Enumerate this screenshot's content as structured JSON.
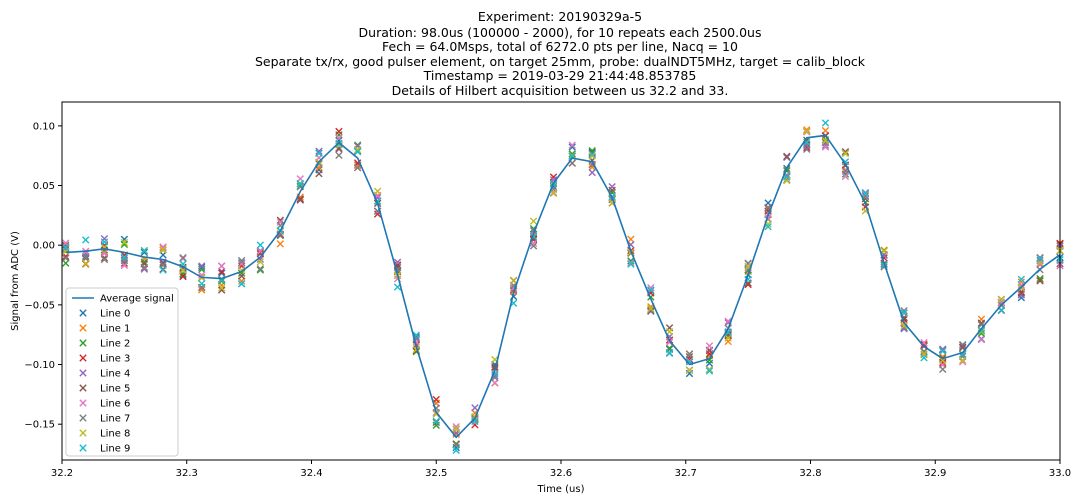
{
  "chart_data": {
    "type": "scatter",
    "title_lines": [
      "Experiment: 20190329a-5",
      "Duration: 98.0us (100000 - 2000), for 10 repeats each 2500.0us",
      "Fech = 64.0Msps, total of 6272.0 pts per line, Nacq = 10",
      "Separate tx/rx, good pulser element, on target 25mm, probe: dualNDT5MHz, target = calib_block",
      "Timestamp = 2019-03-29 21:44:48.853785",
      "Details of Hilbert acquisition between us 32.2 and 33."
    ],
    "xlabel": "Time (us)",
    "ylabel": "Signal from ADC (V)",
    "xlim": [
      32.2,
      33.0
    ],
    "ylim": [
      -0.18,
      0.12
    ],
    "xticks": [
      32.2,
      32.3,
      32.4,
      32.5,
      32.6,
      32.7,
      32.8,
      32.9,
      33.0
    ],
    "xtick_labels": [
      "32.2",
      "32.3",
      "32.4",
      "32.5",
      "32.6",
      "32.7",
      "32.8",
      "32.9",
      "33.0"
    ],
    "yticks": [
      0.1,
      0.05,
      0.0,
      -0.05,
      -0.1,
      -0.15
    ],
    "ytick_labels": [
      "0.10",
      "0.05",
      "0.00",
      "−0.05",
      "−0.10",
      "−0.15"
    ],
    "grid": false,
    "legend_position": "lower-left",
    "x": [
      32.203,
      32.219,
      32.234,
      32.25,
      32.266,
      32.281,
      32.297,
      32.312,
      32.328,
      32.344,
      32.359,
      32.375,
      32.391,
      32.406,
      32.422,
      32.437,
      32.453,
      32.469,
      32.484,
      32.5,
      32.516,
      32.531,
      32.547,
      32.562,
      32.578,
      32.594,
      32.609,
      32.625,
      32.641,
      32.656,
      32.672,
      32.687,
      32.703,
      32.719,
      32.734,
      32.75,
      32.766,
      32.781,
      32.797,
      32.812,
      32.828,
      32.844,
      32.859,
      32.875,
      32.891,
      32.906,
      32.922,
      32.937,
      32.953,
      32.969,
      32.984,
      33.0
    ],
    "average": {
      "name": "Average signal",
      "color": "#1f77b4",
      "values": [
        -0.006,
        -0.005,
        -0.003,
        -0.006,
        -0.01,
        -0.012,
        -0.018,
        -0.027,
        -0.028,
        -0.022,
        -0.01,
        0.012,
        0.045,
        0.07,
        0.086,
        0.073,
        0.035,
        -0.025,
        -0.085,
        -0.14,
        -0.161,
        -0.145,
        -0.105,
        -0.04,
        0.01,
        0.052,
        0.073,
        0.07,
        0.04,
        -0.005,
        -0.045,
        -0.08,
        -0.1,
        -0.095,
        -0.07,
        -0.025,
        0.025,
        0.065,
        0.09,
        0.092,
        0.068,
        0.035,
        -0.015,
        -0.065,
        -0.085,
        -0.095,
        -0.09,
        -0.07,
        -0.05,
        -0.035,
        -0.02,
        -0.008
      ]
    },
    "series": [
      {
        "name": "Line 0",
        "color": "#1f77b4"
      },
      {
        "name": "Line 1",
        "color": "#ff7f0e"
      },
      {
        "name": "Line 2",
        "color": "#2ca02c"
      },
      {
        "name": "Line 3",
        "color": "#d62728"
      },
      {
        "name": "Line 4",
        "color": "#9467bd"
      },
      {
        "name": "Line 5",
        "color": "#8c564b"
      },
      {
        "name": "Line 6",
        "color": "#e377c2"
      },
      {
        "name": "Line 7",
        "color": "#7f7f7f"
      },
      {
        "name": "Line 8",
        "color": "#bcbd22"
      },
      {
        "name": "Line 9",
        "color": "#17becf"
      }
    ],
    "spread_v": 0.022
  }
}
